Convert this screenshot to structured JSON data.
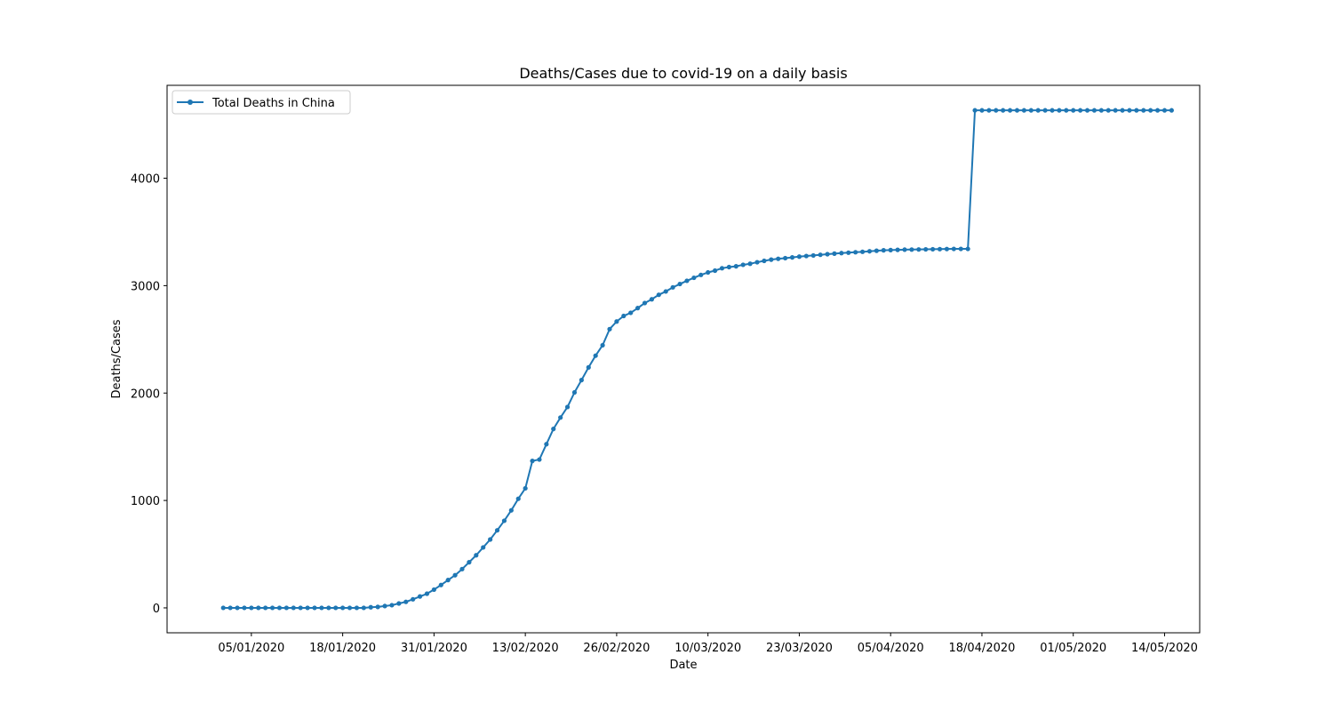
{
  "chart_data": {
    "type": "line",
    "title": "Deaths/Cases due to covid-19 on a daily basis",
    "xlabel": "Date",
    "ylabel": "Deaths/Cases",
    "x_start_date": "2020-01-01",
    "x_end_date": "2020-05-14",
    "xlim": [
      "2019-12-24",
      "2020-05-19"
    ],
    "ylim": [
      -232,
      4865
    ],
    "x_ticks": [
      "05/01/2020",
      "18/01/2020",
      "31/01/2020",
      "13/02/2020",
      "26/02/2020",
      "10/03/2020",
      "23/03/2020",
      "05/04/2020",
      "18/04/2020",
      "01/05/2020",
      "14/05/2020"
    ],
    "y_ticks": [
      0,
      1000,
      2000,
      3000,
      4000
    ],
    "grid": false,
    "legend_position": "top-left",
    "series": [
      {
        "name": "Total Deaths in China",
        "color": "#1f77b4",
        "marker": "circle",
        "values": [
          0,
          0,
          0,
          0,
          0,
          0,
          0,
          0,
          0,
          0,
          0,
          0,
          0,
          0,
          0,
          0,
          0,
          0,
          0,
          0,
          0,
          6,
          9,
          17,
          25,
          41,
          56,
          80,
          106,
          132,
          170,
          213,
          259,
          304,
          361,
          425,
          490,
          563,
          637,
          722,
          811,
          908,
          1016,
          1113,
          1368,
          1381,
          1524,
          1666,
          1772,
          1870,
          2006,
          2121,
          2239,
          2348,
          2445,
          2595,
          2666,
          2718,
          2747,
          2791,
          2838,
          2873,
          2915,
          2946,
          2984,
          3015,
          3045,
          3073,
          3100,
          3123,
          3140,
          3162,
          3173,
          3180,
          3194,
          3204,
          3218,
          3231,
          3242,
          3250,
          3256,
          3263,
          3270,
          3276,
          3281,
          3287,
          3293,
          3298,
          3303,
          3307,
          3311,
          3315,
          3320,
          3325,
          3329,
          3331,
          3333,
          3335,
          3336,
          3337,
          3338,
          3339,
          3340,
          3341,
          3342,
          3342,
          3342,
          4632,
          4632,
          4632,
          4632,
          4632,
          4632,
          4632,
          4632,
          4632,
          4632,
          4632,
          4632,
          4632,
          4632,
          4632,
          4632,
          4632,
          4632,
          4632,
          4632,
          4632,
          4632,
          4632,
          4632,
          4632,
          4632,
          4632,
          4632,
          4632
        ]
      }
    ]
  }
}
